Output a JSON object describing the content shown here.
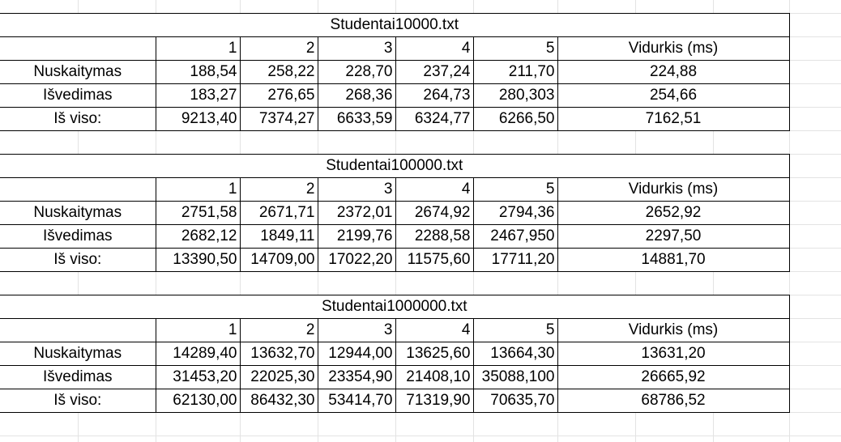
{
  "tables": [
    {
      "title": "Studentai10000.txt",
      "header": [
        "1",
        "2",
        "3",
        "4",
        "5",
        "Vidurkis (ms)"
      ],
      "rows": [
        {
          "label": "Nuskaitymas",
          "values": [
            "188,54",
            "258,22",
            "228,70",
            "237,24",
            "211,70"
          ],
          "avg": "224,88"
        },
        {
          "label": "Išvedimas",
          "values": [
            "183,27",
            "276,65",
            "268,36",
            "264,73",
            "280,303"
          ],
          "avg": "254,66"
        },
        {
          "label": "Iš viso:",
          "values": [
            "9213,40",
            "7374,27",
            "6633,59",
            "6324,77",
            "6266,50"
          ],
          "avg": "7162,51"
        }
      ]
    },
    {
      "title": "Studentai100000.txt",
      "header": [
        "1",
        "2",
        "3",
        "4",
        "5",
        "Vidurkis (ms)"
      ],
      "rows": [
        {
          "label": "Nuskaitymas",
          "values": [
            "2751,58",
            "2671,71",
            "2372,01",
            "2674,92",
            "2794,36"
          ],
          "avg": "2652,92"
        },
        {
          "label": "Išvedimas",
          "values": [
            "2682,12",
            "1849,11",
            "2199,76",
            "2288,58",
            "2467,950"
          ],
          "avg": "2297,50"
        },
        {
          "label": "Iš viso:",
          "values": [
            "13390,50",
            "14709,00",
            "17022,20",
            "11575,60",
            "17711,20"
          ],
          "avg": "14881,70"
        }
      ]
    },
    {
      "title": "Studentai1000000.txt",
      "header": [
        "1",
        "2",
        "3",
        "4",
        "5",
        "Vidurkis (ms)"
      ],
      "rows": [
        {
          "label": "Nuskaitymas",
          "values": [
            "14289,40",
            "13632,70",
            "12944,00",
            "13625,60",
            "13664,30"
          ],
          "avg": "13631,20"
        },
        {
          "label": "Išvedimas",
          "values": [
            "31453,20",
            "22025,30",
            "23354,90",
            "21408,10",
            "35088,100"
          ],
          "avg": "26665,92"
        },
        {
          "label": "Iš viso:",
          "values": [
            "62130,00",
            "86432,30",
            "53414,70",
            "71319,90",
            "70635,70"
          ],
          "avg": "68786,52"
        }
      ]
    }
  ]
}
